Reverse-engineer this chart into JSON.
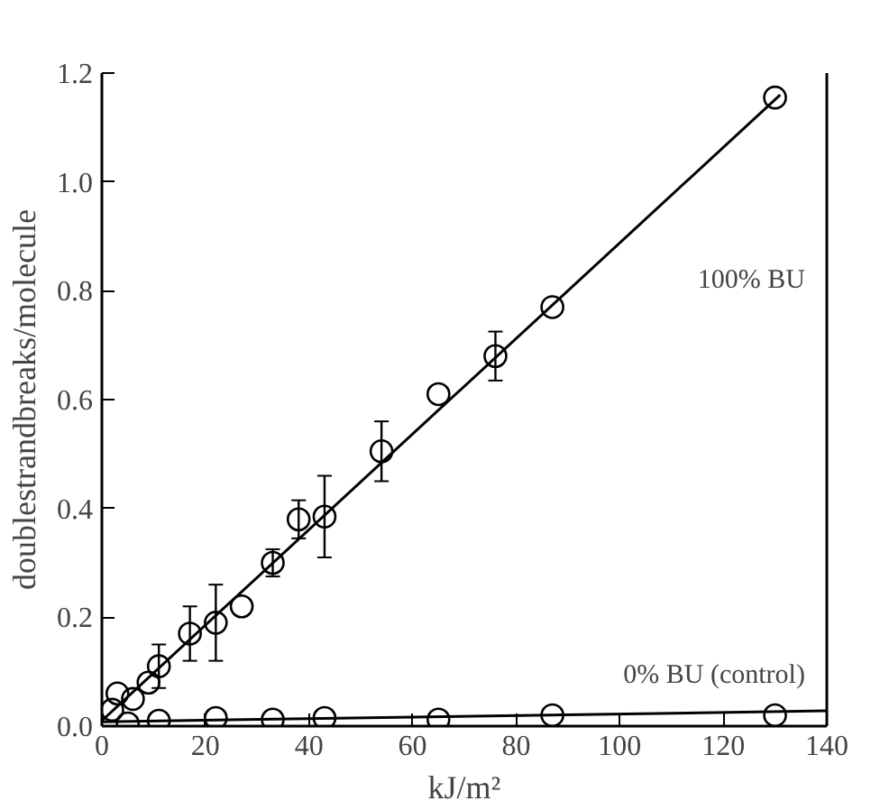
{
  "chart_data": {
    "type": "scatter",
    "xlabel": "kJ/m²",
    "ylabel": "doublestrandbreaks/molecule",
    "xlim": [
      0,
      140
    ],
    "ylim": [
      0,
      1.2
    ],
    "xticks": [
      0,
      20,
      40,
      60,
      80,
      100,
      120,
      140
    ],
    "yticks": [
      {
        "value": 0,
        "label": "0.0"
      },
      {
        "value": 0.2,
        "label": "0.2"
      },
      {
        "value": 0.4,
        "label": "0.4"
      },
      {
        "value": 0.6,
        "label": "0.6"
      },
      {
        "value": 0.8,
        "label": "0.8"
      },
      {
        "value": 1.0,
        "label": "1.0"
      },
      {
        "value": 1.2,
        "label": "1.2"
      }
    ],
    "grid": false,
    "series": [
      {
        "color": "#000000",
        "marker": "circle",
        "x": [
          2,
          3,
          6,
          9,
          11,
          17,
          22,
          27,
          33,
          38,
          43,
          54,
          65,
          76,
          87,
          130
        ],
        "values": [
          0.03,
          0.06,
          0.05,
          0.08,
          0.11,
          0.17,
          0.19,
          0.22,
          0.3,
          0.38,
          0.385,
          0.505,
          0.61,
          0.68,
          0.77,
          1.155
        ],
        "errors": [
          null,
          null,
          null,
          null,
          0.04,
          0.05,
          0.07,
          null,
          0.025,
          0.035,
          0.075,
          0.055,
          null,
          0.045,
          null,
          null
        ]
      },
      {
        "color": "#000000",
        "marker": "circle",
        "x": [
          5,
          11,
          22,
          33,
          43,
          65,
          87,
          130
        ],
        "values": [
          0.005,
          0.01,
          0.015,
          0.012,
          0.015,
          0.012,
          0.02,
          0.02
        ]
      },
      {
        "type": "line",
        "color": "#000000",
        "marker": "none",
        "x": [
          0,
          131
        ],
        "values": [
          0.01,
          1.16
        ]
      },
      {
        "type": "line",
        "color": "#000000",
        "marker": "none",
        "x": [
          0,
          140
        ],
        "values": [
          0.008,
          0.028
        ]
      }
    ],
    "annotations": [
      "100% BU",
      "0% BU (control)"
    ]
  }
}
